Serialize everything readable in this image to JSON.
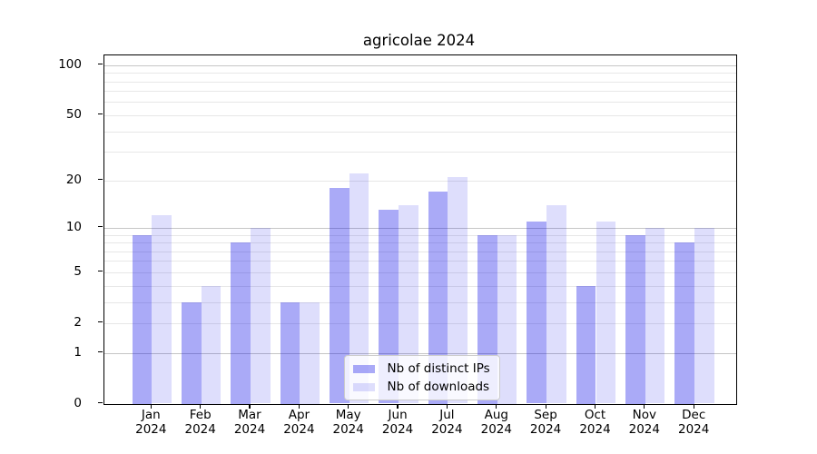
{
  "title": "agricolae 2024",
  "colors": {
    "ips_fill": "rgba(0,0,230,0.335)",
    "downloads_fill": "rgba(0,0,230,0.13)",
    "ips_hex": "#aaaaf7",
    "downloads_hex": "#dcdcfb",
    "grid_minor": "#e7e7e7",
    "grid_major": "#c6c6c6",
    "axis": "#000000",
    "legend_border": "#cccccc"
  },
  "chart_data": {
    "type": "bar",
    "title": "agricolae 2024",
    "categories": [
      "Jan",
      "Feb",
      "Mar",
      "Apr",
      "May",
      "Jun",
      "Jul",
      "Aug",
      "Sep",
      "Oct",
      "Nov",
      "Dec"
    ],
    "category_year": "2024",
    "series": [
      {
        "name": "Nb of distinct IPs",
        "values": [
          9,
          3,
          8,
          3,
          18,
          13,
          17,
          9,
          11,
          4,
          9,
          8
        ],
        "fill": "rgba(0,0,230,0.335)"
      },
      {
        "name": "Nb of downloads",
        "values": [
          12,
          4,
          10,
          3,
          22,
          14,
          21,
          9,
          14,
          11,
          10,
          10
        ],
        "fill": "rgba(0,0,230,0.13)"
      }
    ],
    "y_axis": {
      "scale": "log10(value+1)",
      "ticks": [
        100,
        50,
        20,
        10,
        5,
        2,
        1,
        0
      ],
      "major_gridlines": [
        1,
        10,
        100
      ],
      "minor_gridlines": [
        2,
        3,
        4,
        5,
        6,
        7,
        8,
        9,
        20,
        30,
        40,
        50,
        60,
        70,
        80,
        90
      ],
      "ylim": [
        0,
        100
      ]
    },
    "grid": "on",
    "legend_position": "lower center"
  }
}
